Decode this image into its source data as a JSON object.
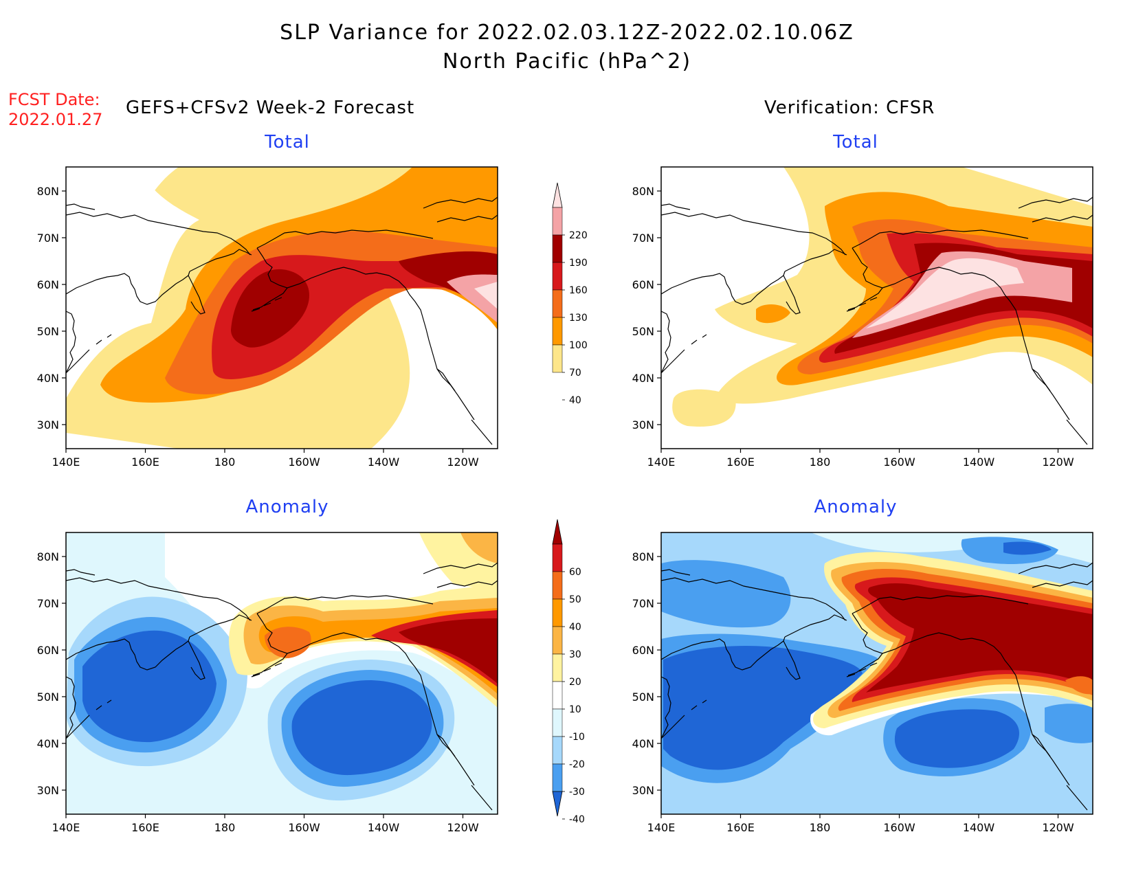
{
  "header": {
    "title_line1": "SLP Variance for 2022.02.03.12Z-2022.02.10.06Z",
    "title_line2": "North Pacific (hPa^2)"
  },
  "fcst": {
    "label": "FCST Date:",
    "date": "2022.01.27"
  },
  "columns": {
    "left": "GEFS+CFSv2 Week-2 Forecast",
    "right": "Verification: CFSR"
  },
  "panels": {
    "total_forecast_title": "Total",
    "total_verif_title": "Total",
    "anom_forecast_title": "Anomaly",
    "anom_verif_title": "Anomaly"
  },
  "axes": {
    "lon_ticks": [
      "140E",
      "160E",
      "180",
      "160W",
      "140W",
      "120W"
    ],
    "lat_ticks": [
      "80N",
      "70N",
      "60N",
      "50N",
      "40N",
      "30N"
    ]
  },
  "colorbars": {
    "total": {
      "labels": [
        "220",
        "190",
        "160",
        "130",
        "100",
        "70",
        "40"
      ],
      "colors": [
        "#fde2e2",
        "#f4a3a6",
        "#a00000",
        "#d7191c",
        "#f46d1a",
        "#ff9900",
        "#fde68a"
      ]
    },
    "anomaly": {
      "labels": [
        "60",
        "50",
        "40",
        "30",
        "20",
        "10",
        "-10",
        "-20",
        "-30",
        "-40"
      ],
      "colors": [
        "#a00000",
        "#d7191c",
        "#f46d1a",
        "#ff9900",
        "#fbb545",
        "#fff3a0",
        "#ffffff",
        "#dff7fd",
        "#a6d8fb",
        "#4a9ff0",
        "#1f66d6"
      ]
    }
  }
}
